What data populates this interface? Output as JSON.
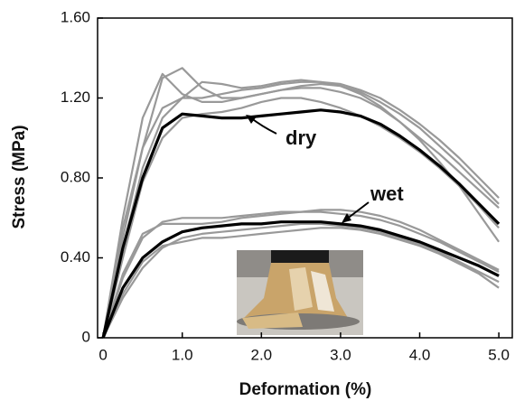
{
  "chart_data": {
    "type": "line",
    "x": [
      0,
      0.25,
      0.5,
      0.75,
      1,
      1.25,
      1.5,
      1.75,
      2,
      2.25,
      2.5,
      2.75,
      3,
      3.25,
      3.5,
      3.75,
      4,
      4.25,
      4.5,
      4.75,
      5
    ],
    "series": [
      {
        "color": "#999999",
        "values": [
          0,
          0.5,
          0.95,
          1.3,
          1.35,
          1.25,
          1.2,
          1.2,
          1.22,
          1.24,
          1.25,
          1.25,
          1.23,
          1.2,
          1.15,
          1.08,
          1.0,
          0.92,
          0.83,
          0.74,
          0.65
        ]
      },
      {
        "color": "#999999",
        "values": [
          0,
          0.6,
          1.1,
          1.32,
          1.22,
          1.18,
          1.18,
          1.2,
          1.22,
          1.24,
          1.26,
          1.27,
          1.26,
          1.23,
          1.18,
          1.12,
          1.05,
          0.96,
          0.87,
          0.77,
          0.67
        ]
      },
      {
        "color": "#999999",
        "values": [
          0,
          0.45,
          0.85,
          1.1,
          1.2,
          1.28,
          1.27,
          1.25,
          1.26,
          1.28,
          1.29,
          1.28,
          1.26,
          1.22,
          1.16,
          1.08,
          0.99,
          0.88,
          0.76,
          0.62,
          0.48
        ]
      },
      {
        "color": "#999999",
        "values": [
          0,
          0.4,
          0.78,
          1.0,
          1.1,
          1.12,
          1.13,
          1.15,
          1.18,
          1.2,
          1.2,
          1.18,
          1.15,
          1.11,
          1.06,
          1.0,
          0.93,
          0.85,
          0.76,
          0.66,
          0.55
        ]
      },
      {
        "color": "#999999",
        "values": [
          0,
          0.55,
          0.95,
          1.15,
          1.2,
          1.2,
          1.22,
          1.24,
          1.25,
          1.27,
          1.28,
          1.28,
          1.27,
          1.24,
          1.2,
          1.14,
          1.07,
          0.99,
          0.9,
          0.8,
          0.7
        ]
      },
      {
        "color": "#999999",
        "values": [
          0,
          0.3,
          0.5,
          0.58,
          0.6,
          0.6,
          0.6,
          0.61,
          0.62,
          0.63,
          0.63,
          0.63,
          0.62,
          0.61,
          0.59,
          0.56,
          0.52,
          0.48,
          0.43,
          0.38,
          0.33
        ]
      },
      {
        "color": "#999999",
        "values": [
          0,
          0.2,
          0.35,
          0.45,
          0.5,
          0.52,
          0.53,
          0.54,
          0.55,
          0.56,
          0.57,
          0.57,
          0.56,
          0.55,
          0.53,
          0.5,
          0.47,
          0.43,
          0.38,
          0.33,
          0.28
        ]
      },
      {
        "color": "#999999",
        "values": [
          0,
          0.32,
          0.52,
          0.57,
          0.57,
          0.57,
          0.58,
          0.6,
          0.61,
          0.62,
          0.63,
          0.64,
          0.64,
          0.63,
          0.61,
          0.58,
          0.54,
          0.49,
          0.44,
          0.39,
          0.34
        ]
      },
      {
        "color": "#999999",
        "values": [
          0,
          0.22,
          0.38,
          0.46,
          0.48,
          0.5,
          0.5,
          0.51,
          0.52,
          0.53,
          0.54,
          0.55,
          0.55,
          0.54,
          0.52,
          0.49,
          0.46,
          0.42,
          0.37,
          0.32,
          0.25
        ]
      },
      {
        "color": "#000000",
        "values": [
          0,
          0.45,
          0.8,
          1.05,
          1.12,
          1.11,
          1.1,
          1.1,
          1.11,
          1.12,
          1.13,
          1.14,
          1.13,
          1.11,
          1.07,
          1.01,
          0.94,
          0.86,
          0.77,
          0.67,
          0.57
        ]
      },
      {
        "color": "#000000",
        "values": [
          0,
          0.25,
          0.4,
          0.48,
          0.53,
          0.55,
          0.56,
          0.57,
          0.57,
          0.58,
          0.58,
          0.58,
          0.57,
          0.56,
          0.54,
          0.51,
          0.48,
          0.44,
          0.4,
          0.36,
          0.31
        ]
      }
    ],
    "xlabel": "Deformation (%)",
    "ylabel": "Stress (MPa)",
    "annotations": [
      "dry",
      "wet"
    ],
    "xlim": [
      -0.07,
      5.17
    ],
    "xticks": [
      0,
      {
        "value": 1,
        "label": "1.0"
      },
      {
        "value": 2,
        "label": "2.0"
      },
      {
        "value": 3,
        "label": "3.0"
      },
      {
        "value": 4,
        "label": "4.0"
      },
      {
        "value": 5,
        "label": "5.0"
      }
    ],
    "ylim": [
      0,
      1.6
    ],
    "yticks": [
      0,
      {
        "value": 0.4,
        "label": "0.40"
      },
      {
        "value": 0.8,
        "label": "0.80"
      },
      {
        "value": 1.2,
        "label": "1.20"
      },
      {
        "value": 1.6,
        "label": "1.60"
      }
    ]
  }
}
